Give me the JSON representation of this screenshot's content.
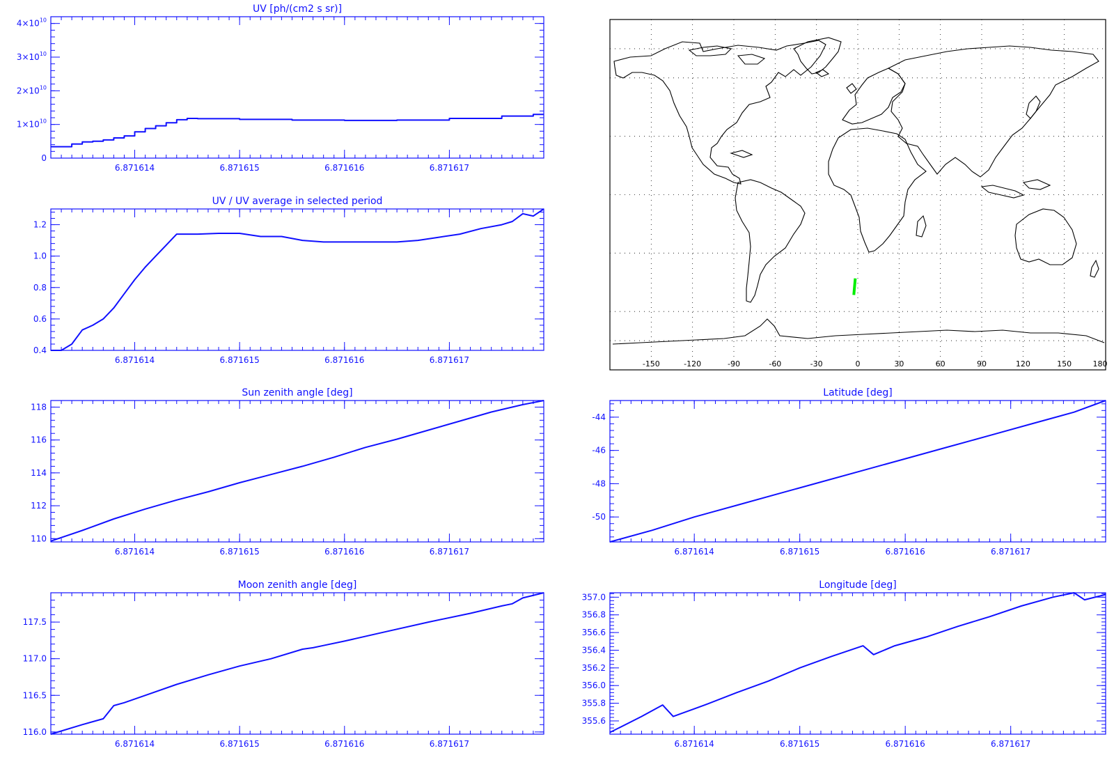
{
  "colors": {
    "plot": "#1010ff",
    "map_line": "#000000",
    "track": "#00ee00",
    "background": "#ffffff"
  },
  "map": {
    "lon_ticks": [
      "-150",
      "-120",
      "-90",
      "-60",
      "-30",
      "0",
      "30",
      "60",
      "90",
      "120",
      "150",
      "180"
    ],
    "lon_range": [
      -180,
      180
    ],
    "lat_range": [
      -90,
      90
    ],
    "grid": "dotted",
    "track": {
      "lon": [
        -2.9,
        -1.8
      ],
      "lat": [
        -51.5,
        -43.0
      ]
    }
  },
  "chart_data": [
    {
      "id": "uv",
      "type": "line",
      "step": true,
      "title": "UV [ph/(cm2 s sr)]",
      "xlim": [
        6.8716132,
        6.8716179
      ],
      "ylim": [
        0,
        42000000000.0
      ],
      "xticks": [
        6.871614,
        6.871615,
        6.871616,
        6.871617
      ],
      "xtick_labels": [
        "6.871614",
        "6.871615",
        "6.871616",
        "6.871617"
      ],
      "yticks": [
        0,
        10000000000.0,
        20000000000.0,
        30000000000.0,
        40000000000.0
      ],
      "ytick_labels": [
        "0",
        "1×10",
        "2×10",
        "3×10",
        "4×10"
      ],
      "ytick_exponent": "10",
      "x": [
        6.8716132,
        6.8716134,
        6.8716135,
        6.8716136,
        6.8716137,
        6.8716138,
        6.8716139,
        6.871614,
        6.8716141,
        6.8716142,
        6.8716143,
        6.8716144,
        6.8716145,
        6.8716146,
        6.871615,
        6.8716155,
        6.871616,
        6.8716165,
        6.871617,
        6.8716175,
        6.8716178
      ],
      "series": [
        {
          "values": [
            3400000000.0,
            4200000000.0,
            4800000000.0,
            5000000000.0,
            5400000000.0,
            6000000000.0,
            6600000000.0,
            7800000000.0,
            8800000000.0,
            9600000000.0,
            10500000000.0,
            11400000000.0,
            11800000000.0,
            11700000000.0,
            11500000000.0,
            11300000000.0,
            11200000000.0,
            11300000000.0,
            11800000000.0,
            12500000000.0,
            13000000000.0
          ]
        }
      ]
    },
    {
      "id": "uvratio",
      "type": "line",
      "title": "UV / UV average in selected period",
      "xlim": [
        6.8716132,
        6.8716179
      ],
      "ylim": [
        0.4,
        1.3
      ],
      "xticks": [
        6.871614,
        6.871615,
        6.871616,
        6.871617
      ],
      "xtick_labels": [
        "6.871614",
        "6.871615",
        "6.871616",
        "6.871617"
      ],
      "yticks": [
        0.4,
        0.6,
        0.8,
        1.0,
        1.2
      ],
      "ytick_labels": [
        "0.4",
        "0.6",
        "0.8",
        "1.0",
        "1.2"
      ],
      "x": [
        6.8716132,
        6.8716133,
        6.8716134,
        6.8716135,
        6.8716136,
        6.8716137,
        6.8716138,
        6.8716139,
        6.871614,
        6.8716141,
        6.8716142,
        6.8716143,
        6.8716144,
        6.8716145,
        6.8716146,
        6.8716148,
        6.871615,
        6.8716152,
        6.8716154,
        6.8716156,
        6.8716158,
        6.871616,
        6.8716162,
        6.8716164,
        6.8716165,
        6.8716167,
        6.8716169,
        6.8716171,
        6.8716173,
        6.8716175,
        6.8716176,
        6.8716177,
        6.8716178,
        6.8716179
      ],
      "series": [
        {
          "values": [
            0.38,
            0.4,
            0.44,
            0.53,
            0.56,
            0.6,
            0.67,
            0.76,
            0.85,
            0.93,
            1.0,
            1.07,
            1.14,
            1.14,
            1.14,
            1.145,
            1.145,
            1.125,
            1.125,
            1.1,
            1.09,
            1.09,
            1.09,
            1.09,
            1.09,
            1.1,
            1.12,
            1.14,
            1.175,
            1.2,
            1.22,
            1.27,
            1.255,
            1.31
          ]
        }
      ]
    },
    {
      "id": "sza",
      "type": "line",
      "title": "Sun zenith angle [deg]",
      "xlim": [
        6.8716132,
        6.8716179
      ],
      "ylim": [
        109.8,
        118.4
      ],
      "xticks": [
        6.871614,
        6.871615,
        6.871616,
        6.871617
      ],
      "xtick_labels": [
        "6.871614",
        "6.871615",
        "6.871616",
        "6.871617"
      ],
      "yticks": [
        110,
        112,
        114,
        116,
        118
      ],
      "ytick_labels": [
        "110",
        "112",
        "114",
        "116",
        "118"
      ],
      "x": [
        6.8716132,
        6.8716135,
        6.8716138,
        6.8716141,
        6.8716144,
        6.8716147,
        6.871615,
        6.8716153,
        6.8716156,
        6.8716159,
        6.8716162,
        6.8716165,
        6.8716168,
        6.8716171,
        6.8716174,
        6.8716177,
        6.8716179
      ],
      "series": [
        {
          "values": [
            109.85,
            110.5,
            111.2,
            111.8,
            112.35,
            112.85,
            113.4,
            113.9,
            114.4,
            114.95,
            115.55,
            116.05,
            116.6,
            117.15,
            117.7,
            118.15,
            118.4
          ]
        }
      ]
    },
    {
      "id": "lat",
      "type": "line",
      "title": "Latitude [deg]",
      "xlim": [
        6.8716132,
        6.8716179
      ],
      "ylim": [
        -51.5,
        -43.0
      ],
      "xticks": [
        6.871614,
        6.871615,
        6.871616,
        6.871617
      ],
      "xtick_labels": [
        "6.871614",
        "6.871615",
        "6.871616",
        "6.871617"
      ],
      "yticks": [
        -50,
        -48,
        -46,
        -44
      ],
      "ytick_labels": [
        "-50",
        "-48",
        "-46",
        "-44"
      ],
      "x": [
        6.8716132,
        6.8716136,
        6.871614,
        6.8716144,
        6.8716148,
        6.8716152,
        6.8716156,
        6.871616,
        6.8716164,
        6.8716168,
        6.8716172,
        6.8716176,
        6.8716179
      ],
      "series": [
        {
          "values": [
            -51.5,
            -50.8,
            -50.0,
            -49.3,
            -48.6,
            -47.9,
            -47.2,
            -46.5,
            -45.8,
            -45.1,
            -44.4,
            -43.7,
            -43.0
          ]
        }
      ]
    },
    {
      "id": "mza",
      "type": "line",
      "title": "Moon zenith angle [deg]",
      "xlim": [
        6.8716132,
        6.8716179
      ],
      "ylim": [
        115.97,
        117.9
      ],
      "xticks": [
        6.871614,
        6.871615,
        6.871616,
        6.871617
      ],
      "xtick_labels": [
        "6.871614",
        "6.871615",
        "6.871616",
        "6.871617"
      ],
      "yticks": [
        116.0,
        116.5,
        117.0,
        117.5
      ],
      "ytick_labels": [
        "116.0",
        "116.5",
        "117.0",
        "117.5"
      ],
      "x": [
        6.8716132,
        6.8716135,
        6.8716137,
        6.8716138,
        6.8716139,
        6.8716141,
        6.8716144,
        6.8716147,
        6.871615,
        6.8716153,
        6.8716156,
        6.8716157,
        6.8716158,
        6.871616,
        6.8716164,
        6.8716168,
        6.8716172,
        6.8716175,
        6.8716176,
        6.8716177,
        6.8716179
      ],
      "series": [
        {
          "values": [
            115.97,
            116.1,
            116.18,
            116.36,
            116.4,
            116.5,
            116.65,
            116.78,
            116.9,
            117.0,
            117.13,
            117.15,
            117.18,
            117.24,
            117.37,
            117.5,
            117.62,
            117.72,
            117.75,
            117.83,
            117.9
          ]
        }
      ]
    },
    {
      "id": "lon",
      "type": "line",
      "title": "Longitude [deg]",
      "xlim": [
        6.8716132,
        6.8716179
      ],
      "ylim": [
        355.45,
        357.05
      ],
      "xticks": [
        6.871614,
        6.871615,
        6.871616,
        6.871617
      ],
      "xtick_labels": [
        "6.871614",
        "6.871615",
        "6.871616",
        "6.871617"
      ],
      "yticks": [
        355.6,
        355.8,
        356.0,
        356.2,
        356.4,
        356.6,
        356.8,
        357.0
      ],
      "ytick_labels": [
        "355.6",
        "355.8",
        "356.0",
        "356.2",
        "356.4",
        "356.6",
        "356.8",
        "357.0"
      ],
      "x": [
        6.8716132,
        6.8716135,
        6.8716137,
        6.8716138,
        6.8716141,
        6.8716144,
        6.8716147,
        6.871615,
        6.8716153,
        6.8716156,
        6.8716157,
        6.8716159,
        6.8716162,
        6.8716165,
        6.8716168,
        6.8716171,
        6.8716174,
        6.8716176,
        6.8716177,
        6.8716179
      ],
      "series": [
        {
          "values": [
            355.47,
            355.65,
            355.78,
            355.65,
            355.78,
            355.92,
            356.05,
            356.2,
            356.33,
            356.45,
            356.35,
            356.45,
            356.55,
            356.67,
            356.78,
            356.9,
            357.0,
            357.05,
            356.97,
            357.03
          ]
        }
      ]
    }
  ]
}
